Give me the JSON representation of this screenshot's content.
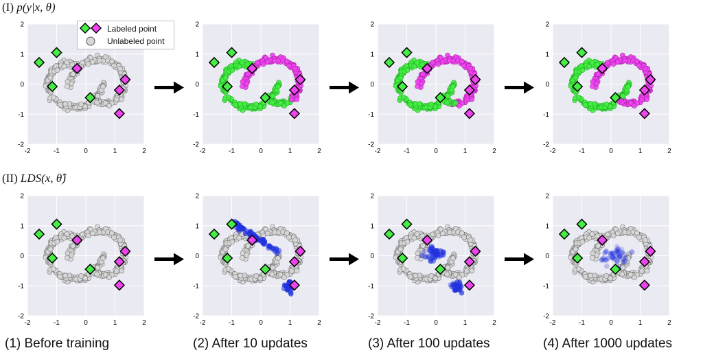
{
  "row_labels": [
    {
      "roman": "(I)",
      "expr": "p(y|x, θ)"
    },
    {
      "roman": "(II)",
      "expr": "LDS(x, θ̂)"
    }
  ],
  "captions": [
    "(1) Before training",
    "(2) After 10 updates",
    "(3) After 100 updates",
    "(4) After 1000 updates"
  ],
  "legend": {
    "labeled": "Labeled point",
    "unlabeled": "Unlabeled point"
  },
  "colors": {
    "class_a": "#44ee44",
    "class_b": "#ee44ee",
    "unlabeled": "#d8d8d8",
    "lds": "#2233dd",
    "panel_bg": "#eaeaf2",
    "arrow": "#000000"
  },
  "chart_data": [
    {
      "type": "scatter",
      "row": "I",
      "stage": 1,
      "xlim": [
        -2,
        2
      ],
      "ylim": [
        -2,
        2
      ],
      "xticks": [
        -2,
        -1,
        0,
        1,
        2
      ],
      "yticks": [
        -2,
        -1,
        0,
        1,
        2
      ],
      "grid": true,
      "legend": "top-right",
      "mode": "unlabeled",
      "labeled_points": {
        "class_a": [
          [
            -1.6,
            0.72
          ],
          [
            -1.0,
            1.05
          ],
          [
            -1.15,
            -0.08
          ],
          [
            0.15,
            -0.45
          ]
        ],
        "class_b": [
          [
            -0.3,
            0.52
          ],
          [
            1.15,
            -0.2
          ],
          [
            1.35,
            0.15
          ],
          [
            1.15,
            -0.98
          ]
        ]
      }
    },
    {
      "type": "scatter",
      "row": "I",
      "stage": 2,
      "xlim": [
        -2,
        2
      ],
      "ylim": [
        -2,
        2
      ],
      "xticks": [
        -2,
        -1,
        0,
        1,
        2
      ],
      "yticks": [
        -2,
        -1,
        0,
        1,
        2
      ],
      "grid": true,
      "mode": "pred_10",
      "labeled_points": {
        "class_a": [
          [
            -1.6,
            0.72
          ],
          [
            -1.0,
            1.05
          ],
          [
            -1.15,
            -0.08
          ],
          [
            0.15,
            -0.45
          ]
        ],
        "class_b": [
          [
            -0.3,
            0.52
          ],
          [
            1.15,
            -0.2
          ],
          [
            1.35,
            0.15
          ],
          [
            1.15,
            -0.98
          ]
        ]
      }
    },
    {
      "type": "scatter",
      "row": "I",
      "stage": 3,
      "xlim": [
        -2,
        2
      ],
      "ylim": [
        -2,
        2
      ],
      "xticks": [
        -2,
        -1,
        0,
        1,
        2
      ],
      "yticks": [
        -2,
        -1,
        0,
        1,
        2
      ],
      "grid": true,
      "mode": "pred_100",
      "labeled_points": {
        "class_a": [
          [
            -1.6,
            0.72
          ],
          [
            -1.0,
            1.05
          ],
          [
            -1.15,
            -0.08
          ],
          [
            0.15,
            -0.45
          ]
        ],
        "class_b": [
          [
            -0.3,
            0.52
          ],
          [
            1.15,
            -0.2
          ],
          [
            1.35,
            0.15
          ],
          [
            1.15,
            -0.98
          ]
        ]
      }
    },
    {
      "type": "scatter",
      "row": "I",
      "stage": 4,
      "xlim": [
        -2,
        2
      ],
      "ylim": [
        -2,
        2
      ],
      "xticks": [
        -2,
        -1,
        0,
        1,
        2
      ],
      "yticks": [
        -2,
        -1,
        0,
        1,
        2
      ],
      "grid": true,
      "mode": "pred_1000",
      "labeled_points": {
        "class_a": [
          [
            -1.6,
            0.72
          ],
          [
            -1.0,
            1.05
          ],
          [
            -1.15,
            -0.08
          ],
          [
            0.15,
            -0.45
          ]
        ],
        "class_b": [
          [
            -0.3,
            0.52
          ],
          [
            1.15,
            -0.2
          ],
          [
            1.35,
            0.15
          ],
          [
            1.15,
            -0.98
          ]
        ]
      }
    },
    {
      "type": "scatter",
      "row": "II",
      "stage": 1,
      "xlim": [
        -2,
        2
      ],
      "ylim": [
        -2,
        2
      ],
      "xticks": [
        -2,
        -1,
        0,
        1,
        2
      ],
      "yticks": [
        -2,
        -1,
        0,
        1,
        2
      ],
      "grid": true,
      "mode": "lds_0",
      "labeled_points": {
        "class_a": [
          [
            -1.6,
            0.72
          ],
          [
            -1.0,
            1.05
          ],
          [
            -1.15,
            -0.08
          ],
          [
            0.15,
            -0.45
          ]
        ],
        "class_b": [
          [
            -0.3,
            0.52
          ],
          [
            1.15,
            -0.2
          ],
          [
            1.35,
            0.15
          ],
          [
            1.15,
            -0.98
          ]
        ]
      }
    },
    {
      "type": "scatter",
      "row": "II",
      "stage": 2,
      "xlim": [
        -2,
        2
      ],
      "ylim": [
        -2,
        2
      ],
      "xticks": [
        -2,
        -1,
        0,
        1,
        2
      ],
      "yticks": [
        -2,
        -1,
        0,
        1,
        2
      ],
      "grid": true,
      "mode": "lds_10",
      "labeled_points": {
        "class_a": [
          [
            -1.6,
            0.72
          ],
          [
            -1.0,
            1.05
          ],
          [
            -1.15,
            -0.08
          ],
          [
            0.15,
            -0.45
          ]
        ],
        "class_b": [
          [
            -0.3,
            0.52
          ],
          [
            1.15,
            -0.2
          ],
          [
            1.35,
            0.15
          ],
          [
            1.15,
            -0.98
          ]
        ]
      }
    },
    {
      "type": "scatter",
      "row": "II",
      "stage": 3,
      "xlim": [
        -2,
        2
      ],
      "ylim": [
        -2,
        2
      ],
      "xticks": [
        -2,
        -1,
        0,
        1,
        2
      ],
      "yticks": [
        -2,
        -1,
        0,
        1,
        2
      ],
      "grid": true,
      "mode": "lds_100",
      "labeled_points": {
        "class_a": [
          [
            -1.6,
            0.72
          ],
          [
            -1.0,
            1.05
          ],
          [
            -1.15,
            -0.08
          ],
          [
            0.15,
            -0.45
          ]
        ],
        "class_b": [
          [
            -0.3,
            0.52
          ],
          [
            1.15,
            -0.2
          ],
          [
            1.35,
            0.15
          ],
          [
            1.15,
            -0.98
          ]
        ]
      }
    },
    {
      "type": "scatter",
      "row": "II",
      "stage": 4,
      "xlim": [
        -2,
        2
      ],
      "ylim": [
        -2,
        2
      ],
      "xticks": [
        -2,
        -1,
        0,
        1,
        2
      ],
      "yticks": [
        -2,
        -1,
        0,
        1,
        2
      ],
      "grid": true,
      "mode": "lds_1000",
      "labeled_points": {
        "class_a": [
          [
            -1.6,
            0.72
          ],
          [
            -1.0,
            1.05
          ],
          [
            -1.15,
            -0.08
          ],
          [
            0.15,
            -0.45
          ]
        ],
        "class_b": [
          [
            -0.3,
            0.52
          ],
          [
            1.15,
            -0.2
          ],
          [
            1.35,
            0.15
          ],
          [
            1.15,
            -0.98
          ]
        ]
      }
    }
  ]
}
